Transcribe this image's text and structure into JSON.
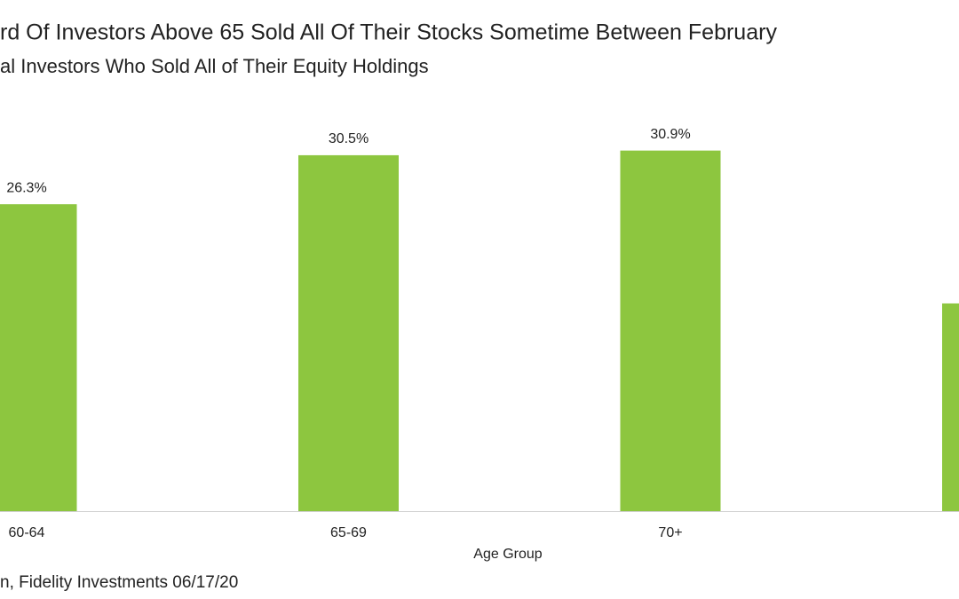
{
  "chart_data": {
    "type": "bar",
    "title": "rd Of Investors Above 65 Sold All Of Their Stocks Sometime Between February",
    "subtitle": "al Investors Who Sold All of Their Equity Holdings",
    "x_label": "Age Group",
    "source": "n, Fidelity Investments 06/17/20",
    "categories": [
      "60-64",
      "65-69",
      "70+",
      null
    ],
    "values": [
      26.3,
      30.5,
      30.9,
      17.8
    ],
    "value_labels": [
      "26.3%",
      "30.5%",
      "30.9%",
      null
    ],
    "color": "#8dc63f"
  }
}
